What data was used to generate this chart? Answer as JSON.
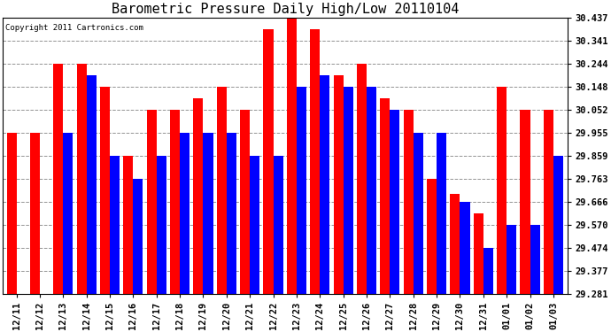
{
  "title": "Barometric Pressure Daily High/Low 20110104",
  "copyright": "Copyright 2011 Cartronics.com",
  "categories": [
    "12/11",
    "12/12",
    "12/13",
    "12/14",
    "12/15",
    "12/16",
    "12/17",
    "12/18",
    "12/19",
    "12/20",
    "12/21",
    "12/22",
    "12/23",
    "12/24",
    "12/25",
    "12/26",
    "12/27",
    "12/28",
    "12/29",
    "12/30",
    "12/31",
    "01/01",
    "01/02",
    "01/03"
  ],
  "highs": [
    29.955,
    29.955,
    30.244,
    30.244,
    30.148,
    29.859,
    30.052,
    30.052,
    30.1,
    30.148,
    30.052,
    30.389,
    30.437,
    30.389,
    30.196,
    30.244,
    30.1,
    30.052,
    29.763,
    29.7,
    29.617,
    30.148,
    30.052,
    30.052
  ],
  "lows": [
    29.281,
    29.281,
    29.955,
    30.196,
    29.859,
    29.763,
    29.859,
    29.955,
    29.955,
    29.955,
    29.859,
    29.859,
    30.148,
    30.196,
    30.148,
    30.148,
    30.052,
    29.955,
    29.955,
    29.666,
    29.474,
    29.57,
    29.57,
    29.859
  ],
  "ymin": 29.281,
  "ymax": 30.437,
  "yticks": [
    29.281,
    29.377,
    29.474,
    29.57,
    29.666,
    29.763,
    29.859,
    29.955,
    30.052,
    30.148,
    30.244,
    30.341,
    30.437
  ],
  "high_color": "#ff0000",
  "low_color": "#0000ff",
  "background_color": "#ffffff",
  "grid_color": "#888888",
  "title_fontsize": 11,
  "tick_fontsize": 7.5,
  "bar_width": 0.42
}
